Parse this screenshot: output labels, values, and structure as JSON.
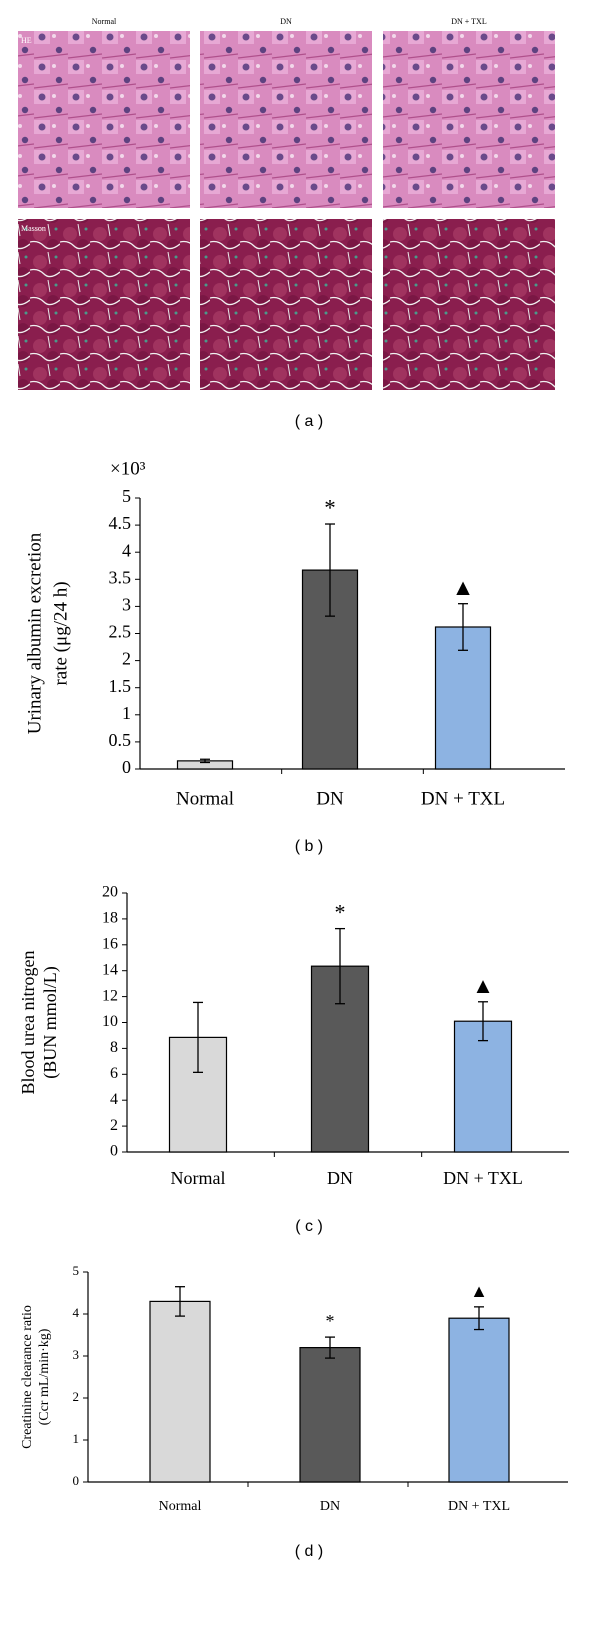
{
  "panel_a": {
    "columns": [
      "Normal",
      "DN",
      "DN + TXL"
    ],
    "rows": [
      "HE",
      "Masson"
    ],
    "caption": "( a )"
  },
  "chart_data": [
    {
      "type": "bar",
      "y_multiplier": "×10³",
      "ylabel": [
        "Urinary albumin excretion",
        "rate (μg/24 h)"
      ],
      "categories": [
        "Normal",
        "DN",
        "DN + TXL"
      ],
      "values": [
        0.15,
        3.67,
        2.62
      ],
      "errors": [
        0.03,
        0.85,
        0.43
      ],
      "colors": [
        "#d9d9d9",
        "#595959",
        "#8db3e2"
      ],
      "markers": [
        null,
        "*",
        "▲"
      ],
      "ylim": [
        0,
        5
      ],
      "yticks": [
        0,
        0.5,
        1,
        1.5,
        2,
        2.5,
        3,
        3.5,
        4,
        4.5,
        5
      ],
      "caption": "( b )"
    },
    {
      "type": "bar",
      "ylabel": [
        "Blood urea nitrogen",
        "(BUN mmol/L)"
      ],
      "categories": [
        "Normal",
        "DN",
        "DN + TXL"
      ],
      "values": [
        8.85,
        14.35,
        10.1
      ],
      "errors": [
        2.7,
        2.9,
        1.5
      ],
      "colors": [
        "#d9d9d9",
        "#595959",
        "#8db3e2"
      ],
      "markers": [
        null,
        "*",
        "▲"
      ],
      "ylim": [
        0,
        20
      ],
      "yticks": [
        0,
        2,
        4,
        6,
        8,
        10,
        12,
        14,
        16,
        18,
        20
      ],
      "caption": "( c )"
    },
    {
      "type": "bar",
      "ylabel": [
        "Creatinine clearance ratio",
        "(Ccr mL/min·kg)"
      ],
      "categories": [
        "Normal",
        "DN",
        "DN + TXL"
      ],
      "values": [
        4.3,
        3.2,
        3.9
      ],
      "errors": [
        0.35,
        0.25,
        0.27
      ],
      "colors": [
        "#d9d9d9",
        "#595959",
        "#8db3e2"
      ],
      "markers": [
        null,
        "*",
        "▲"
      ],
      "ylim": [
        0,
        5
      ],
      "yticks": [
        0,
        1,
        2,
        3,
        4,
        5
      ],
      "caption": "( d )"
    }
  ]
}
